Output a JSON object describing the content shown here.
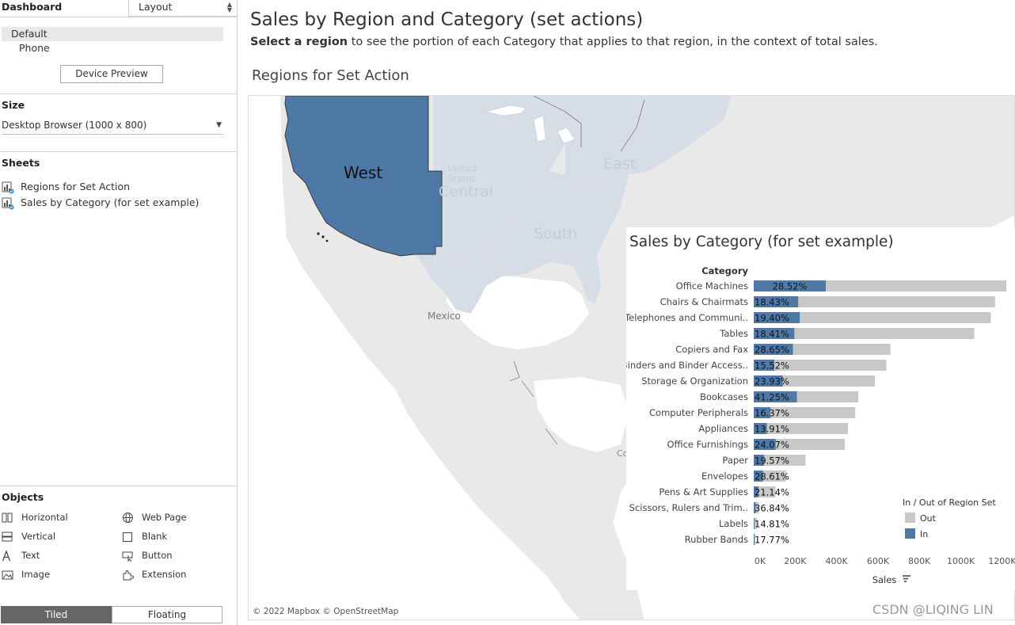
{
  "left_panel": {
    "dashboard_label": "Dashboard",
    "layout_tab": "Layout",
    "devices": {
      "default": "Default",
      "phone": "Phone"
    },
    "device_preview_button": "Device Preview",
    "size_label": "Size",
    "size_value": "Desktop Browser (1000 x 800)",
    "sheets_label": "Sheets",
    "sheets": [
      "Regions for Set Action",
      "Sales by Category (for set example)"
    ],
    "objects_label": "Objects",
    "objects": [
      {
        "label": "Horizontal",
        "icon": "horizontal-container-icon"
      },
      {
        "label": "Web Page",
        "icon": "globe-icon"
      },
      {
        "label": "Vertical",
        "icon": "vertical-container-icon"
      },
      {
        "label": "Blank",
        "icon": "blank-icon"
      },
      {
        "label": "Text",
        "icon": "text-icon"
      },
      {
        "label": "Button",
        "icon": "button-icon"
      },
      {
        "label": "Image",
        "icon": "image-icon"
      },
      {
        "label": "Extension",
        "icon": "extension-icon"
      }
    ],
    "tiled_button": "Tiled",
    "floating_button": "Floating"
  },
  "dashboard": {
    "title": "Sales by Region and Category (set actions)",
    "subtitle_bold": "Select a region",
    "subtitle_rest": " to see the portion of each Category that applies to that region, in the context of total sales."
  },
  "map": {
    "title": "Regions for Set Action",
    "labels": {
      "west": "West",
      "central": "Central",
      "east": "East",
      "south": "South",
      "united_states": "United\nStates",
      "mexico": "Mexico",
      "co": "Co"
    },
    "copyright": "© 2022 Mapbox © OpenStreetMap",
    "colors": {
      "selected": "#4e79a7",
      "region": "#d7dde6",
      "land": "#e9e9e9",
      "water": "#ffffff"
    }
  },
  "chart_data": {
    "type": "bar",
    "orientation": "horizontal",
    "stacked": true,
    "title": "Sales by Category (for set example)",
    "category_header": "Category",
    "xlabel": "Sales",
    "xlim": [
      0,
      1250000
    ],
    "x_ticks": [
      "0K",
      "200K",
      "400K",
      "600K",
      "800K",
      "1000K",
      "1200K"
    ],
    "x_tick_values": [
      0,
      200000,
      400000,
      600000,
      800000,
      1000000,
      1200000
    ],
    "categories": [
      "Office Machines",
      "Chairs & Chairmats",
      "Telephones and Communi..",
      "Tables",
      "Copiers and Fax",
      "Binders and Binder Access..",
      "Storage & Organization",
      "Bookcases",
      "Computer Peripherals",
      "Appliances",
      "Office Furnishings",
      "Paper",
      "Envelopes",
      "Pens & Art Supplies",
      "Scissors, Rulers and Trim..",
      "Labels",
      "Rubber Bands"
    ],
    "total_sales": [
      1220000,
      1165000,
      1145000,
      1065000,
      660000,
      640000,
      585000,
      505000,
      490000,
      455000,
      440000,
      250000,
      155000,
      105000,
      25000,
      15000,
      8000
    ],
    "in_percent": [
      "28.52%",
      "18.43%",
      "19.40%",
      "18.41%",
      "28.65%",
      "15.52%",
      "23.93%",
      "41.25%",
      "16.37%",
      "13.91%",
      "24.07%",
      "19.57%",
      "28.61%",
      "21.14%",
      "36.84%",
      "14.81%",
      "17.77%"
    ],
    "in_fraction": [
      0.2852,
      0.1843,
      0.194,
      0.1841,
      0.2865,
      0.1552,
      0.2393,
      0.4125,
      0.1637,
      0.1391,
      0.2407,
      0.1957,
      0.2861,
      0.2114,
      0.3684,
      0.1481,
      0.1777
    ],
    "series": [
      {
        "name": "Out",
        "color": "#c8c8c8"
      },
      {
        "name": "In",
        "color": "#4e79a7"
      }
    ],
    "legend_title": "In / Out of Region Set",
    "legend_position": "bottom-right"
  },
  "watermark": "CSDN @LIQING LIN"
}
